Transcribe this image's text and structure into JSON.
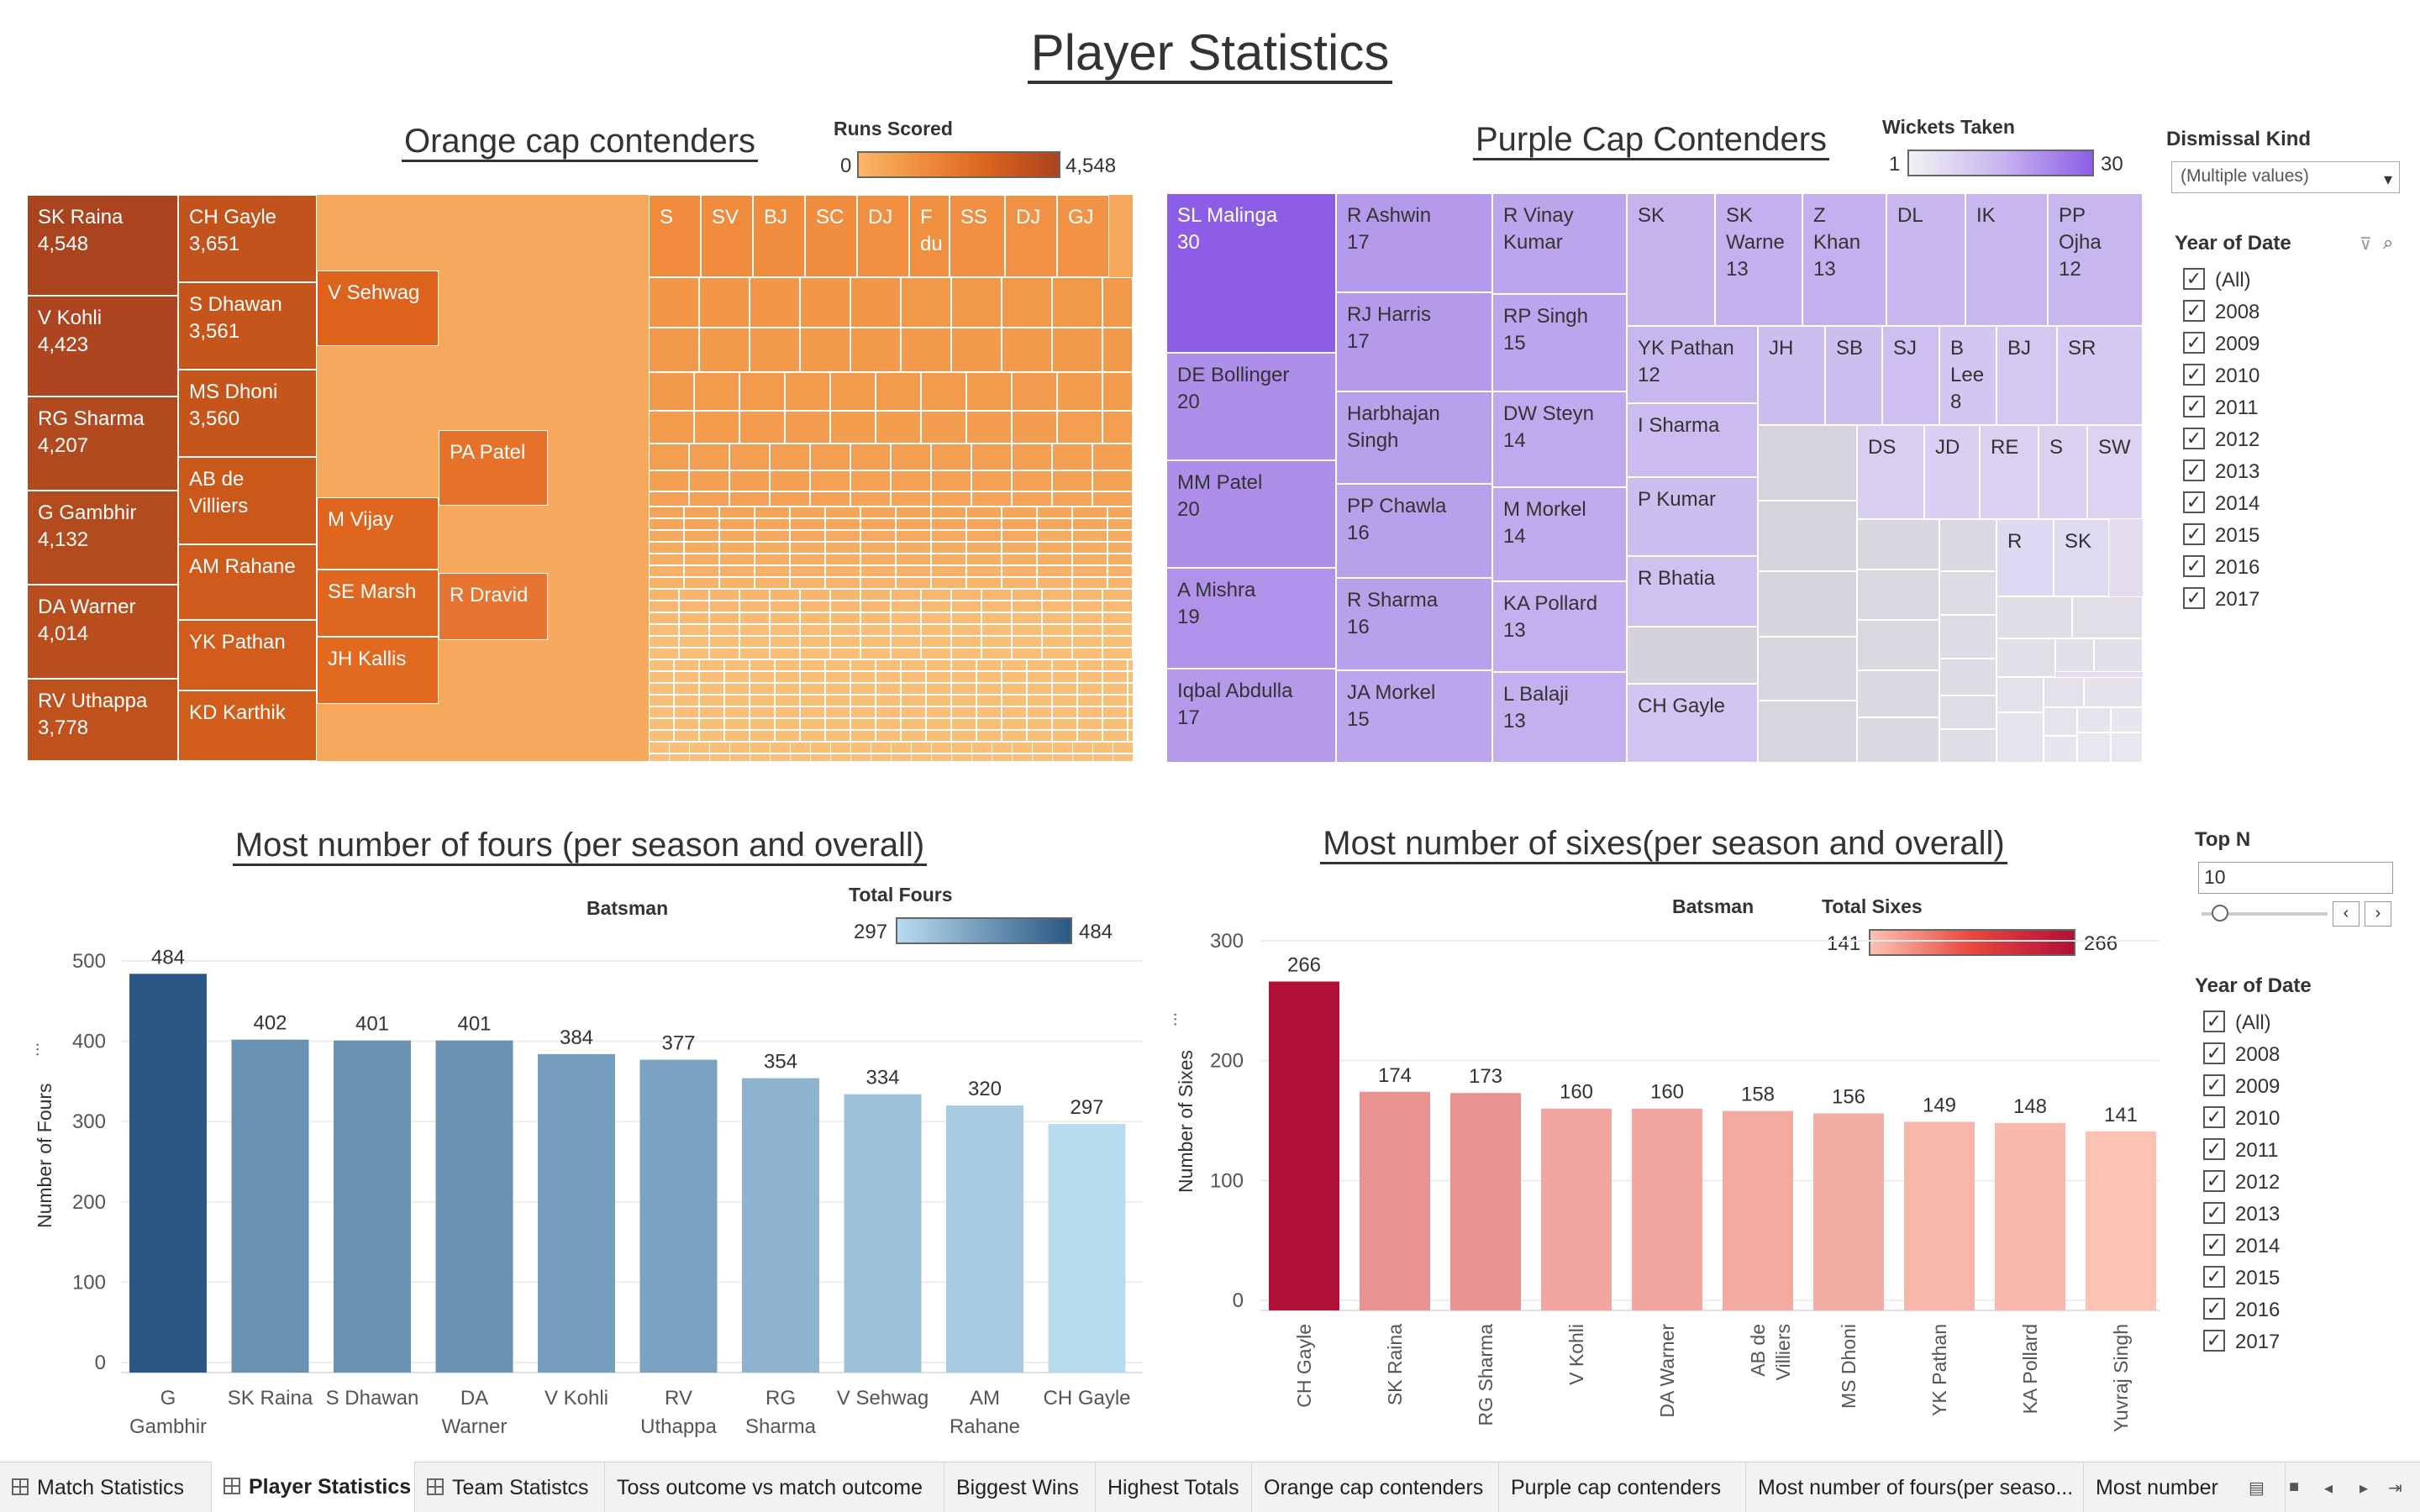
{
  "dashboard": {
    "title": "Player Statistics"
  },
  "orange_cap": {
    "title": "Orange cap contenders ",
    "legend": {
      "title": "Runs Scored",
      "min": "0",
      "max": "4,548"
    },
    "cells": [
      {
        "label": "SK Raina\n4,548",
        "c": "#a9441f"
      },
      {
        "label": "V Kohli\n4,423",
        "c": "#ad4620"
      },
      {
        "label": "RG Sharma\n4,207",
        "c": "#b24a1f"
      },
      {
        "label": "G Gambhir\n4,132",
        "c": "#b44b1f"
      },
      {
        "label": "DA Warner\n4,014",
        "c": "#b84d1e"
      },
      {
        "label": "RV Uthappa\n3,778",
        "c": "#bf511d"
      },
      {
        "label": "CH Gayle\n3,651",
        "c": "#c3531c"
      },
      {
        "label": "S Dhawan\n3,561",
        "c": "#c6551c"
      },
      {
        "label": "MS Dhoni\n3,560",
        "c": "#c6551c"
      },
      {
        "label": "AB de\nVilliers",
        "c": "#cb581b"
      },
      {
        "label": "AM Rahane",
        "c": "#ce5a1b"
      },
      {
        "label": "YK Pathan",
        "c": "#d15c1b"
      },
      {
        "label": "KD Karthik",
        "c": "#d35d1b"
      },
      {
        "label": "V Sehwag",
        "c": "#dd631d"
      },
      {
        "label": "M Vijay",
        "c": "#df661e"
      },
      {
        "label": "SE Marsh",
        "c": "#e0671f"
      },
      {
        "label": "JH Kallis",
        "c": "#e16920"
      },
      {
        "label": "PA Patel",
        "c": "#e6712a"
      },
      {
        "label": "R Dravid",
        "c": "#e77430"
      },
      {
        "label": "S",
        "c": "#f08a3c"
      },
      {
        "label": "SV",
        "c": "#f08b3d"
      },
      {
        "label": "BJ",
        "c": "#f08c3e"
      },
      {
        "label": "SC",
        "c": "#f08d3f"
      },
      {
        "label": "DJ",
        "c": "#f18e40"
      },
      {
        "label": "F\ndu",
        "c": "#f18f41"
      },
      {
        "label": "SS",
        "c": "#f19042"
      },
      {
        "label": "DJ",
        "c": "#f19143"
      },
      {
        "label": "GJ",
        "c": "#f19244"
      }
    ]
  },
  "purple_cap": {
    "title": "Purple Cap Contenders",
    "legend": {
      "title": "Wickets Taken",
      "min": "1",
      "max": "30"
    },
    "cells": [
      {
        "label": "SL Malinga\n30",
        "c": "#8c5ee6"
      },
      {
        "label": "DE Bollinger\n20",
        "c": "#ad8ee9"
      },
      {
        "label": "MM Patel\n20",
        "c": "#ad8ee9"
      },
      {
        "label": "A Mishra\n19",
        "c": "#b092ea"
      },
      {
        "label": "Iqbal Abdulla\n17",
        "c": "#b59aeb"
      },
      {
        "label": "R Ashwin\n17",
        "c": "#b59aeb"
      },
      {
        "label": "RJ Harris\n17",
        "c": "#b59aeb"
      },
      {
        "label": "Harbhajan\nSingh",
        "c": "#b8a0eb"
      },
      {
        "label": "PP Chawla\n16",
        "c": "#b8a0eb"
      },
      {
        "label": "R Sharma\n16",
        "c": "#b8a0eb"
      },
      {
        "label": "JA Morkel\n15",
        "c": "#bca5ec"
      },
      {
        "label": "R Vinay\nKumar",
        "c": "#bca5ec"
      },
      {
        "label": "RP Singh\n15",
        "c": "#bca5ec"
      },
      {
        "label": "DW Steyn\n14",
        "c": "#c0aaed"
      },
      {
        "label": "M Morkel\n14",
        "c": "#c0aaed"
      },
      {
        "label": "KA Pollard\n13",
        "c": "#c4b0ee"
      },
      {
        "label": "L Balaji\n13",
        "c": "#c4b0ee"
      },
      {
        "label": "SK",
        "c": "#c6b3ee"
      },
      {
        "label": "SK\nWarne\n13",
        "c": "#c4b0ee"
      },
      {
        "label": "Z Khan\n13",
        "c": "#c4b0ee"
      },
      {
        "label": "DL",
        "c": "#c8b7ef"
      },
      {
        "label": "IK",
        "c": "#c9b8ef"
      },
      {
        "label": "PP\nOjha\n12",
        "c": "#c8b6ef"
      },
      {
        "label": "YK Pathan\n12",
        "c": "#c8b6ef"
      },
      {
        "label": "JH",
        "c": "#cdbef0"
      },
      {
        "label": "SB",
        "c": "#cdbef0"
      },
      {
        "label": "SJ",
        "c": "#cebff0"
      },
      {
        "label": "B\nLee\n8",
        "c": "#d3c6f1"
      },
      {
        "label": "BJ",
        "c": "#d4c8f1"
      },
      {
        "label": "SR",
        "c": "#d5c9f1"
      },
      {
        "label": "I Sharma",
        "c": "#cbbbef"
      },
      {
        "label": "P Kumar",
        "c": "#cdbef0"
      },
      {
        "label": "R Bhatia",
        "c": "#cfc1f0"
      },
      {
        "label": "CH Gayle",
        "c": "#d2c5f1"
      },
      {
        "label": "DS",
        "c": "#d8cef2"
      },
      {
        "label": "JD",
        "c": "#d9cff2"
      },
      {
        "label": "RE",
        "c": "#dad0f2"
      },
      {
        "label": "S",
        "c": "#dbd2f2"
      },
      {
        "label": "SW",
        "c": "#dcd3f2"
      },
      {
        "label": "R",
        "c": "#dfd8f2"
      },
      {
        "label": "SK",
        "c": "#e0d9f2"
      }
    ]
  },
  "fours": {
    "title": "Most number of fours (per season and overall)",
    "header": "Batsman",
    "legend": {
      "title": "Total Fours",
      "min": "297",
      "max": "484"
    },
    "y_axis_title": "Number of Fours",
    "y_ticks": [
      "0",
      "100",
      "200",
      "300",
      "400",
      "500"
    ]
  },
  "sixes": {
    "title": "Most number of sixes(per season and overall)",
    "header": "Batsman",
    "legend": {
      "title": "Total Sixes",
      "min": "141",
      "max": "266"
    },
    "y_axis_title": "Number of Sixes",
    "y_ticks": [
      "0",
      "100",
      "200",
      "300"
    ]
  },
  "chart_data": [
    {
      "type": "bar",
      "title": "Most number of fours (per season and overall)",
      "xlabel": "Batsman",
      "ylabel": "Number of Fours",
      "categories": [
        "G\nGambhir",
        "SK Raina",
        "S Dhawan",
        "DA\nWarner",
        "V Kohli",
        "RV\nUthappa",
        "RG\nSharma",
        "V Sehwag",
        "AM\nRahane",
        "CH Gayle"
      ],
      "values": [
        484,
        402,
        401,
        401,
        384,
        377,
        354,
        334,
        320,
        297
      ],
      "ylim": [
        0,
        500
      ],
      "color_scale": [
        "#b8dcef",
        "#2a5783"
      ],
      "grid": true
    },
    {
      "type": "bar",
      "title": "Most number of sixes(per season and overall)",
      "xlabel": "Batsman",
      "ylabel": "Number of Sixes",
      "categories": [
        "CH Gayle",
        "SK Raina",
        "RG Sharma",
        "V Kohli",
        "DA Warner",
        "AB de\nVilliers",
        "MS Dhoni",
        "YK Pathan",
        "KA Pollard",
        "Yuvraj Singh"
      ],
      "values": [
        266,
        174,
        173,
        160,
        160,
        158,
        156,
        149,
        148,
        141
      ],
      "ylim": [
        0,
        300
      ],
      "color_scale": [
        "#fcc2b2",
        "#b11037"
      ],
      "grid": true
    }
  ],
  "filters": {
    "dismissal": {
      "title": "Dismissal Kind",
      "value": "(Multiple values)"
    },
    "year1": {
      "title": "Year of Date",
      "items": [
        "(All)",
        "2008",
        "2009",
        "2010",
        "2011",
        "2012",
        "2013",
        "2014",
        "2015",
        "2016",
        "2017"
      ]
    },
    "topn": {
      "title": "Top N",
      "value": "10"
    },
    "year2": {
      "title": "Year of Date",
      "items": [
        "(All)",
        "2008",
        "2009",
        "2010",
        "2011",
        "2012",
        "2013",
        "2014",
        "2015",
        "2016",
        "2017"
      ]
    }
  },
  "tabs": [
    "Match Statistics",
    "Player Statistics",
    "Team Statistcs",
    "Toss outcome vs match outcome",
    "Biggest Wins",
    "Highest Totals",
    "Orange cap contenders",
    "Purple cap contenders",
    "Most number of fours(per seaso...",
    "Most number"
  ],
  "active_tab": "Player Statistics",
  "icons": {
    "tab": "grid-icon",
    "filter": "filter-icon",
    "search": "search-icon"
  }
}
